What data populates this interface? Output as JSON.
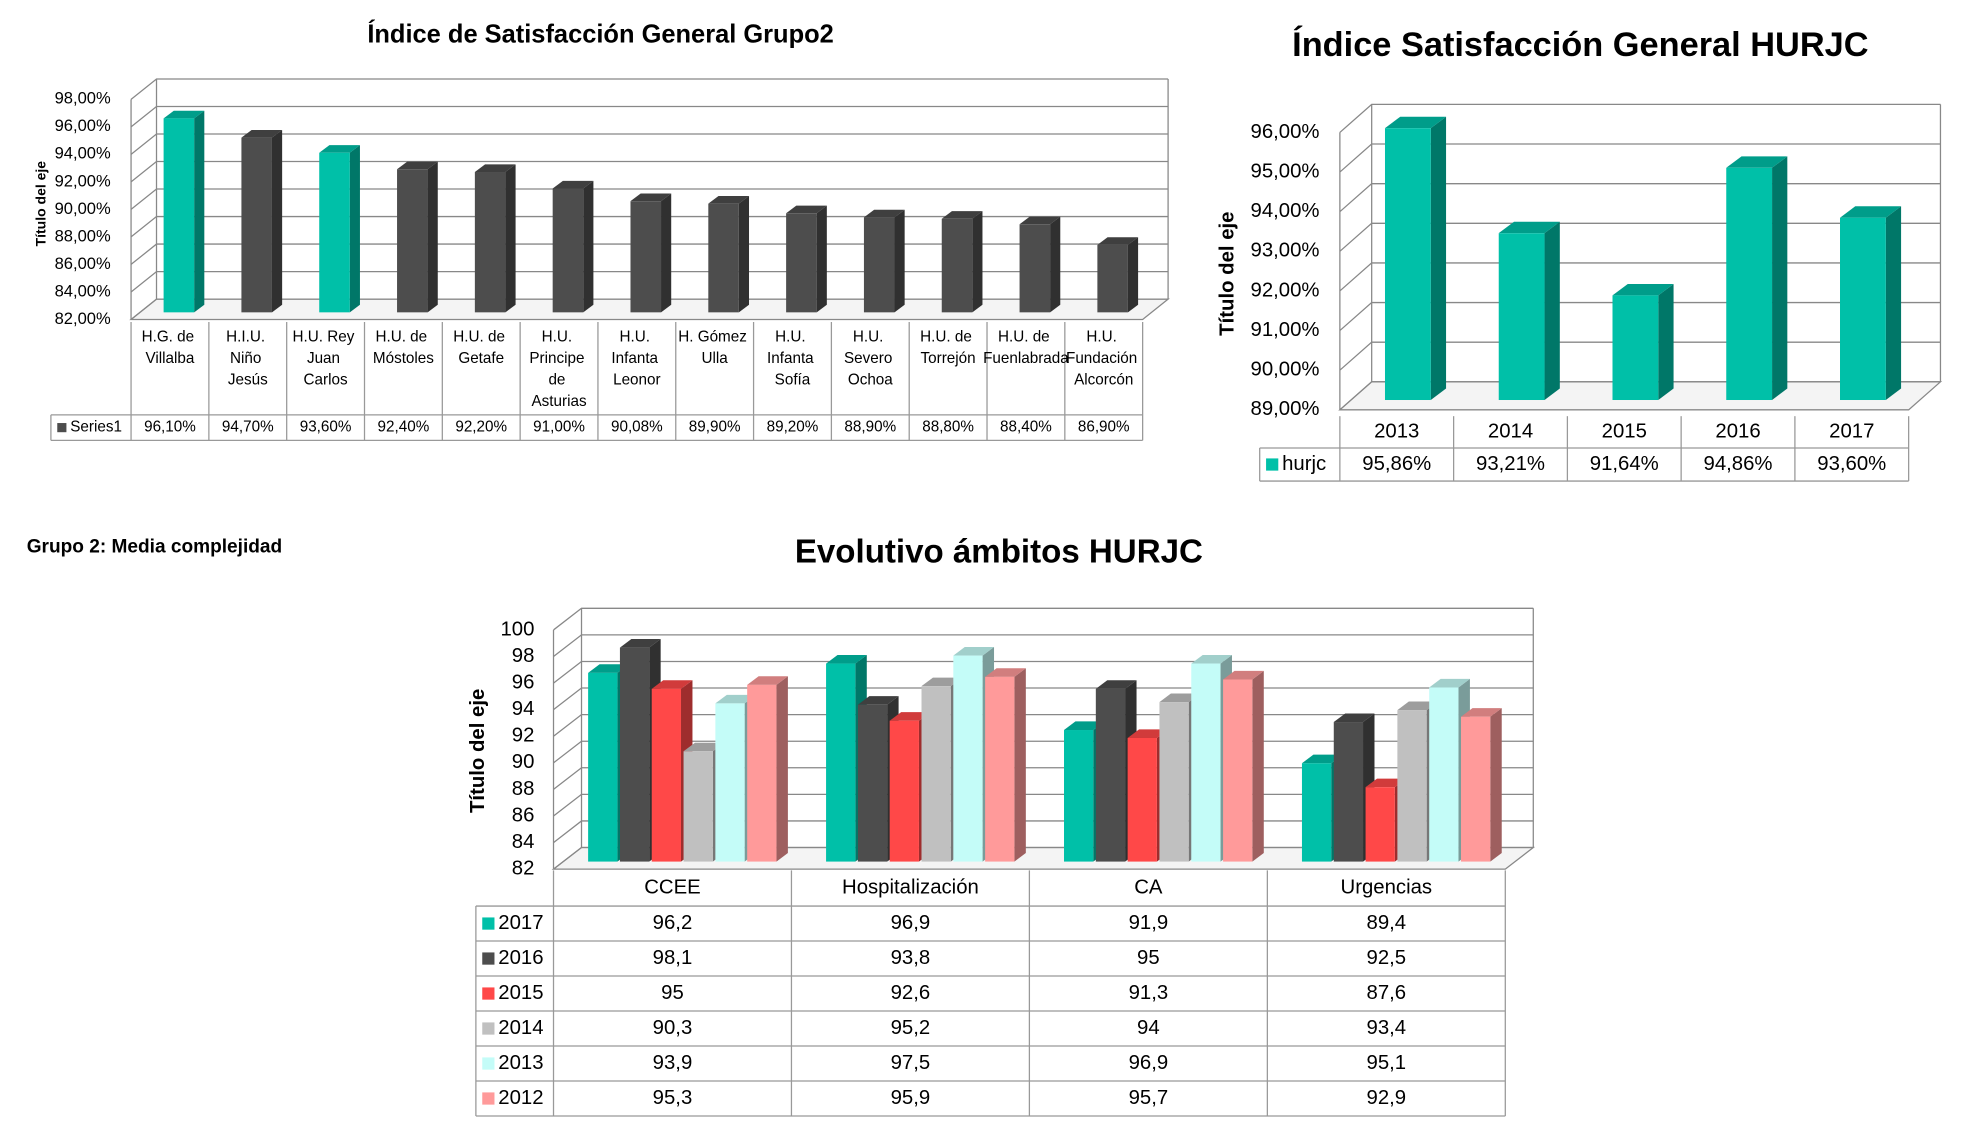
{
  "caption": "Grupo 2: Media complejidad",
  "chart_data": [
    {
      "type": "bar3d",
      "title": "Índice de Satisfacción General Grupo2",
      "y_label": "Título del eje",
      "categories": [
        "H.G. de Villalba",
        "H.I.U. Niño Jesús",
        "H.U. Rey Juan Carlos",
        "H.U. de Móstoles",
        "H.U. de Getafe",
        "H.U. Principe de Asturias",
        "H.U. Infanta Leonor",
        "H. Gómez Ulla",
        "H.U. Infanta Sofía",
        "H.U. Severo Ochoa",
        "H.U. de Torrejón",
        "H.U. de Fuenlabrada",
        "H.U. Fundación Alcorcón"
      ],
      "series": [
        {
          "name": "Series1",
          "color": "#4d4d4d",
          "point_colors": [
            "#00c0a8",
            "#4d4d4d",
            "#00c0a8",
            "#4d4d4d",
            "#4d4d4d",
            "#4d4d4d",
            "#4d4d4d",
            "#4d4d4d",
            "#4d4d4d",
            "#4d4d4d",
            "#4d4d4d",
            "#4d4d4d",
            "#4d4d4d"
          ],
          "values": [
            96.1,
            94.7,
            93.6,
            92.4,
            92.2,
            91.0,
            90.08,
            89.9,
            89.2,
            88.9,
            88.8,
            88.4,
            86.9
          ],
          "value_labels": [
            "96,10%",
            "94,70%",
            "93,60%",
            "92,40%",
            "92,20%",
            "91,00%",
            "90,08%",
            "89,90%",
            "89,20%",
            "88,90%",
            "88,80%",
            "88,40%",
            "86,90%"
          ]
        }
      ],
      "ylim": [
        82,
        98
      ],
      "yticks": [
        {
          "value": 82,
          "label": "82,00%"
        },
        {
          "value": 84,
          "label": "84,00%"
        },
        {
          "value": 86,
          "label": "86,00%"
        },
        {
          "value": 88,
          "label": "88,00%"
        },
        {
          "value": 90,
          "label": "90,00%"
        },
        {
          "value": 92,
          "label": "92,00%"
        },
        {
          "value": 94,
          "label": "94,00%"
        },
        {
          "value": 96,
          "label": "96,00%"
        },
        {
          "value": 98,
          "label": "98,00%"
        }
      ],
      "grid": true
    },
    {
      "type": "bar3d",
      "title": "Índice Satisfacción General HURJC",
      "y_label": "Título del eje",
      "categories": [
        "2013",
        "2014",
        "2015",
        "2016",
        "2017"
      ],
      "series": [
        {
          "name": "hurjc",
          "color": "#00c0a8",
          "values": [
            95.86,
            93.21,
            91.64,
            94.86,
            93.6
          ],
          "value_labels": [
            "95,86%",
            "93,21%",
            "91,64%",
            "94,86%",
            "93,60%"
          ]
        }
      ],
      "ylim": [
        89,
        96
      ],
      "yticks": [
        {
          "value": 89,
          "label": "89,00%"
        },
        {
          "value": 90,
          "label": "90,00%"
        },
        {
          "value": 91,
          "label": "91,00%"
        },
        {
          "value": 92,
          "label": "92,00%"
        },
        {
          "value": 93,
          "label": "93,00%"
        },
        {
          "value": 94,
          "label": "94,00%"
        },
        {
          "value": 95,
          "label": "95,00%"
        },
        {
          "value": 96,
          "label": "96,00%"
        }
      ],
      "grid": true
    },
    {
      "type": "bar3d",
      "title": "Evolutivo ámbitos HURJC",
      "y_label": "Título del eje",
      "categories": [
        "CCEE",
        "Hospitalización",
        "CA",
        "Urgencias"
      ],
      "series": [
        {
          "name": "2017",
          "color": "#00c0a8",
          "values": [
            96.2,
            96.9,
            91.9,
            89.4
          ],
          "value_labels": [
            "96,2",
            "96,9",
            "91,9",
            "89,4"
          ]
        },
        {
          "name": "2016",
          "color": "#4d4d4d",
          "values": [
            98.1,
            93.8,
            95,
            92.5
          ],
          "value_labels": [
            "98,1",
            "93,8",
            "95",
            "92,5"
          ]
        },
        {
          "name": "2015",
          "color": "#ff4848",
          "values": [
            95,
            92.6,
            91.3,
            87.6
          ],
          "value_labels": [
            "95",
            "92,6",
            "91,3",
            "87,6"
          ]
        },
        {
          "name": "2014",
          "color": "#c0c0c0",
          "values": [
            90.3,
            95.2,
            94,
            93.4
          ],
          "value_labels": [
            "90,3",
            "95,2",
            "94",
            "93,4"
          ]
        },
        {
          "name": "2013",
          "color": "#c4fcf8",
          "values": [
            93.9,
            97.5,
            96.9,
            95.1
          ],
          "value_labels": [
            "93,9",
            "97,5",
            "96,9",
            "95,1"
          ]
        },
        {
          "name": "2012",
          "color": "#ff9a9a",
          "values": [
            95.3,
            95.9,
            95.7,
            92.9
          ],
          "value_labels": [
            "95,3",
            "95,9",
            "95,7",
            "92,9"
          ]
        }
      ],
      "ylim": [
        82,
        100
      ],
      "yticks": [
        82,
        84,
        86,
        88,
        90,
        92,
        94,
        96,
        98,
        100
      ],
      "grid": true
    }
  ]
}
